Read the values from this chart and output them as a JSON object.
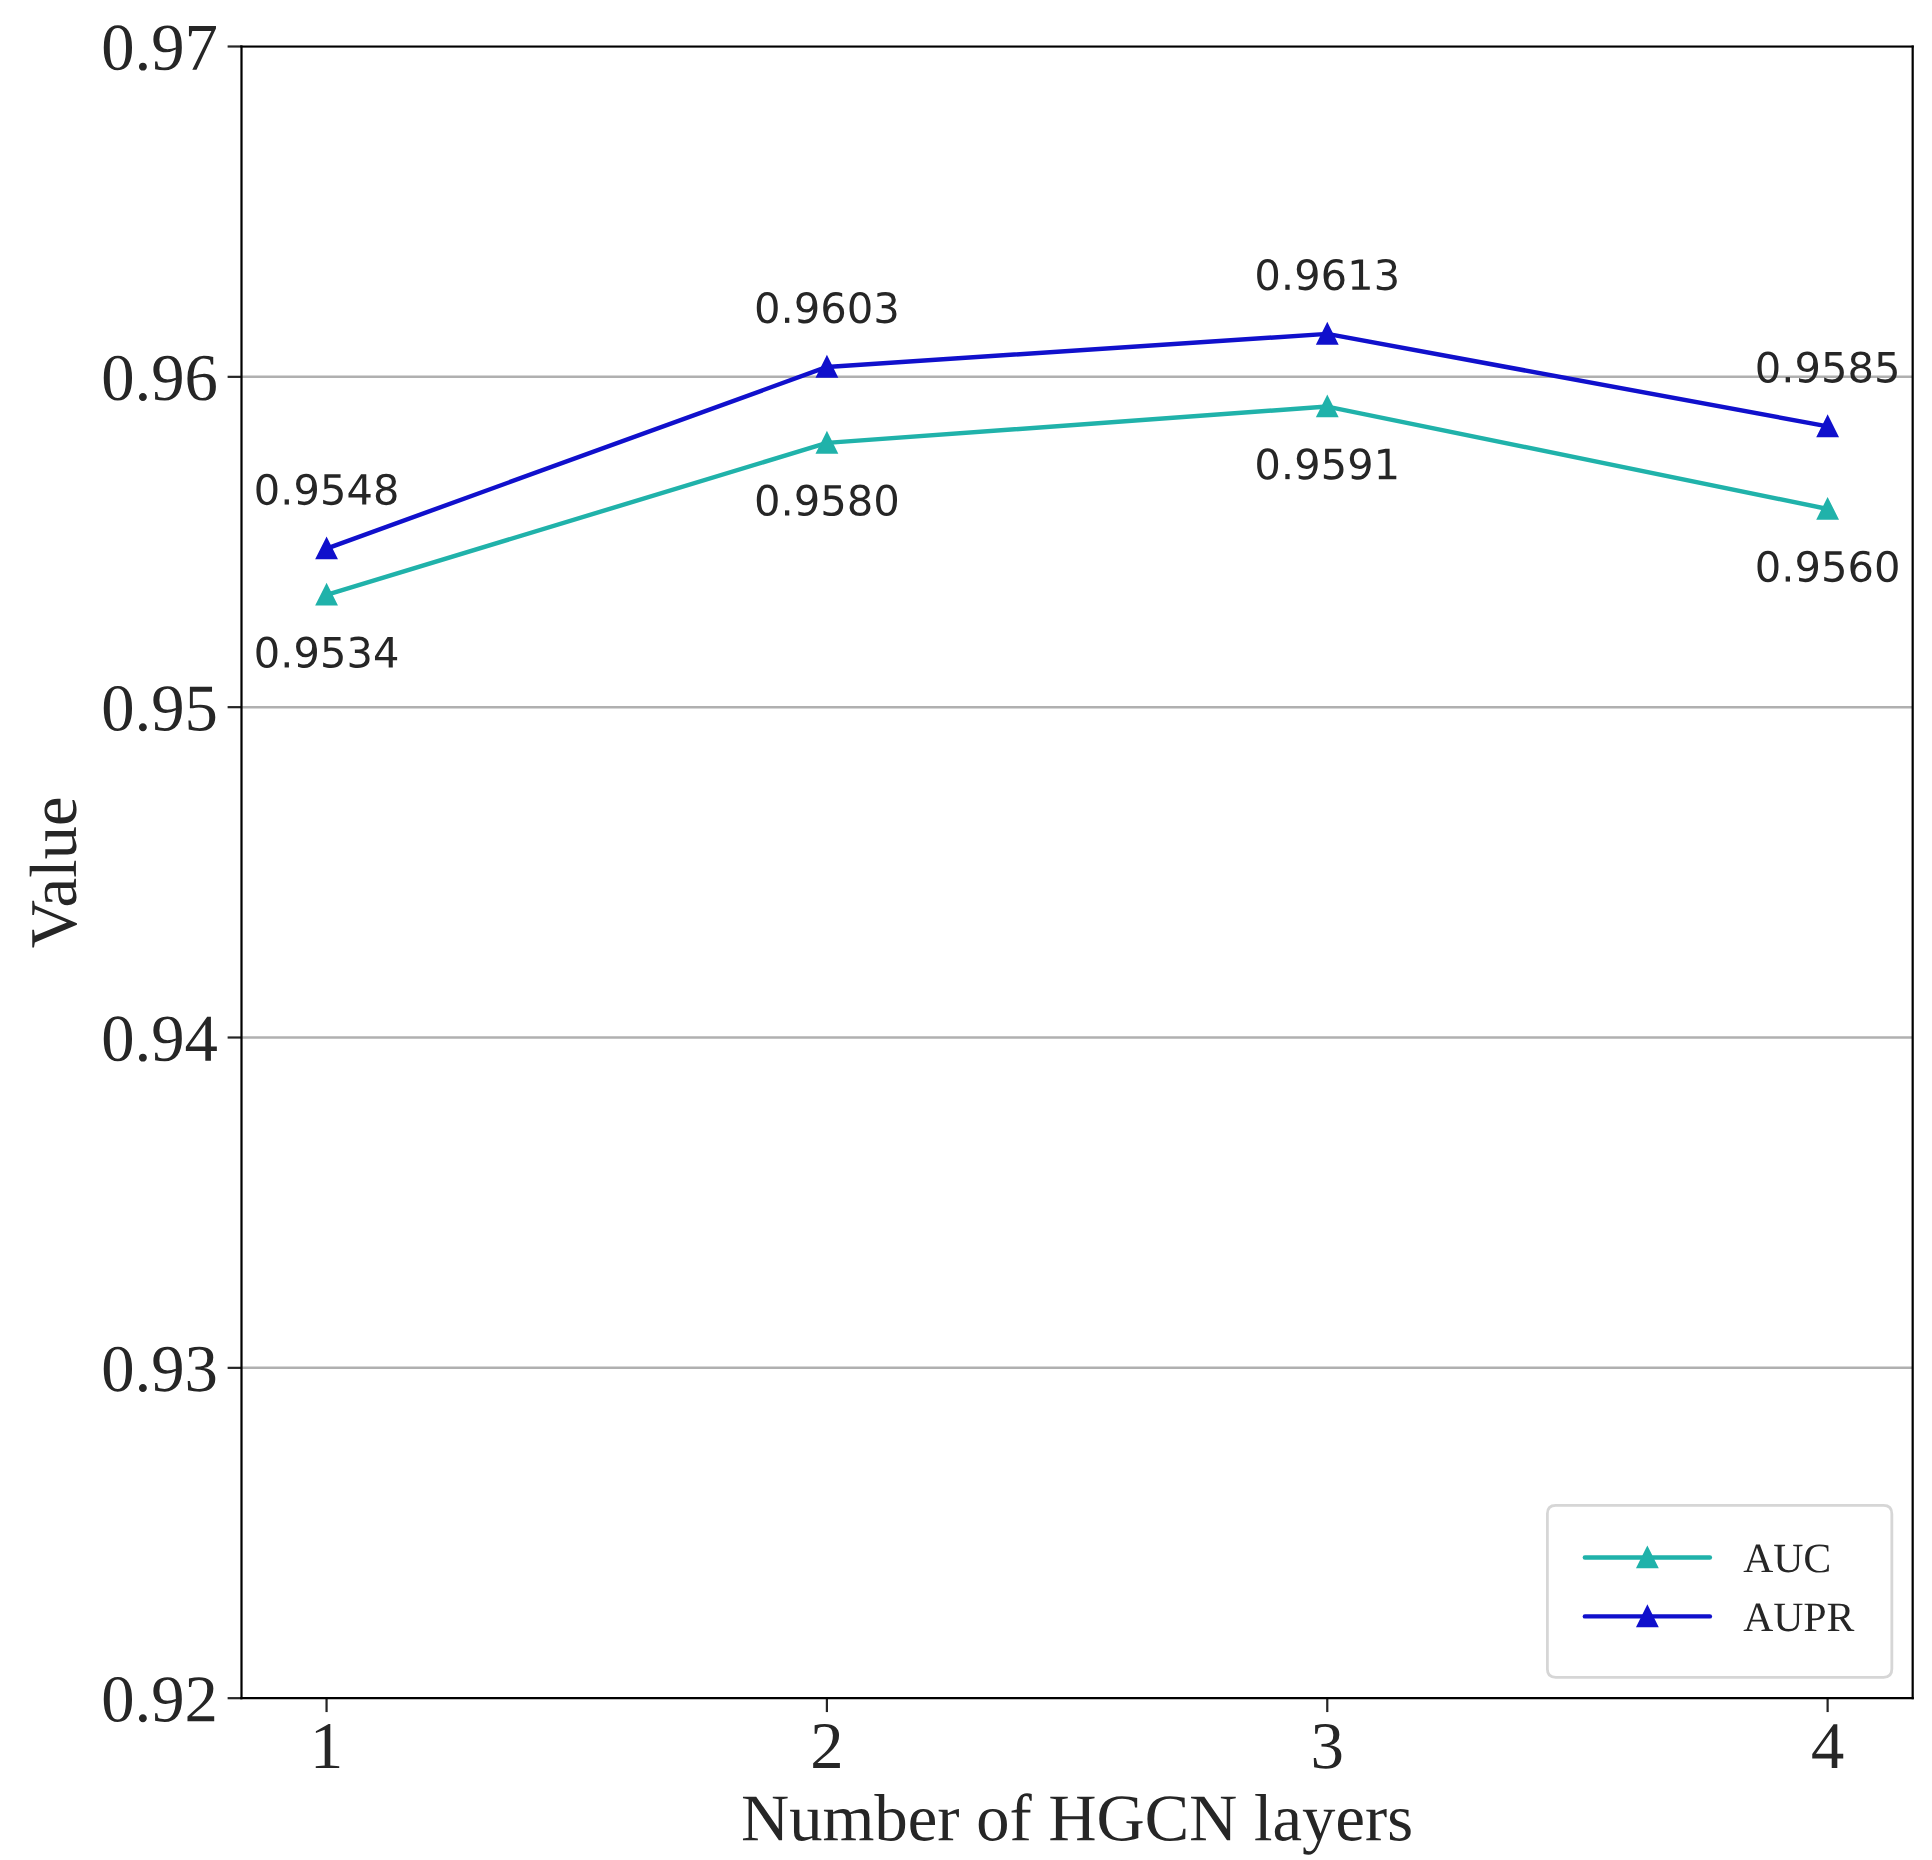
{
  "chart_data": {
    "type": "line",
    "xlabel": "Number of HGCN layers",
    "ylabel": "Value",
    "categories": [
      "1",
      "2",
      "3",
      "4"
    ],
    "series": [
      {
        "name": "AUC",
        "color": "#20b2aa",
        "values": [
          0.9534,
          0.958,
          0.9591,
          0.956
        ],
        "value_labels": [
          "0.9534",
          "0.9580",
          "0.9591",
          "0.9560"
        ]
      },
      {
        "name": "AUPR",
        "color": "#1010cc",
        "values": [
          0.9548,
          0.9603,
          0.9613,
          0.9585
        ],
        "value_labels": [
          "0.9548",
          "0.9603",
          "0.9613",
          "0.9585"
        ]
      }
    ],
    "ylim": [
      0.92,
      0.97
    ],
    "yticks": [
      0.92,
      0.93,
      0.94,
      0.95,
      0.96,
      0.97
    ],
    "grid": "y",
    "legend": "bottom right",
    "marker": "triangle",
    "line_style": "solid"
  }
}
